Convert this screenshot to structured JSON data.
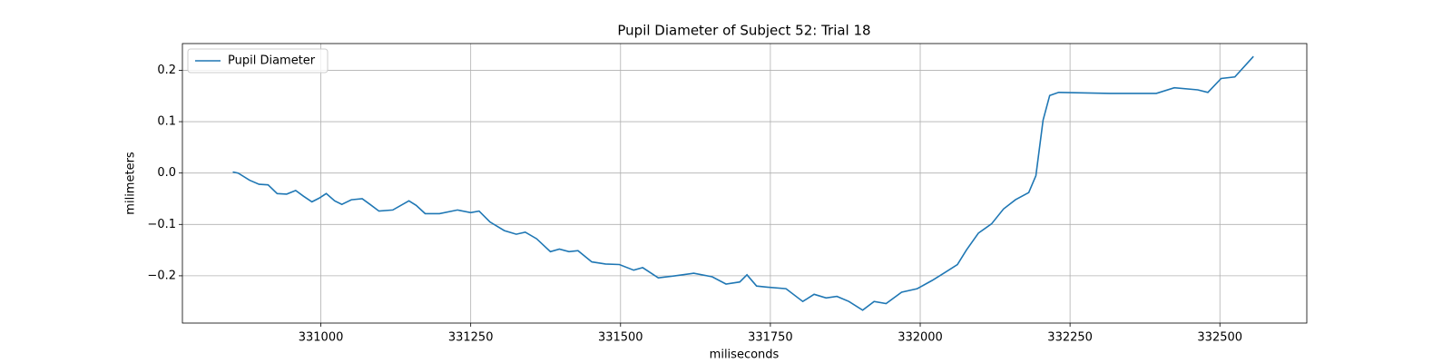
{
  "chart_data": {
    "type": "line",
    "title": "Pupil Diameter of Subject 52: Trial 18",
    "xlabel": "miliseconds",
    "ylabel": "milimeters",
    "x": [
      330853,
      330862,
      330881,
      330897,
      330912,
      330927,
      330943,
      330958,
      330971,
      330985,
      330997,
      331009,
      331023,
      331035,
      331051,
      331069,
      331082,
      331097,
      331120,
      331147,
      331159,
      331174,
      331198,
      331228,
      331250,
      331264,
      331282,
      331306,
      331326,
      331341,
      331360,
      331383,
      331398,
      331414,
      331429,
      331452,
      331475,
      331498,
      331522,
      331537,
      331563,
      331591,
      331622,
      331653,
      331676,
      331699,
      331711,
      331727,
      331745,
      331776,
      331804,
      331823,
      331843,
      331861,
      331881,
      331904,
      331923,
      331943,
      331969,
      331995,
      332020,
      332042,
      332062,
      332077,
      332097,
      332119,
      332139,
      332159,
      332181,
      332193,
      332205,
      332216,
      332231,
      332316,
      332394,
      332424,
      332463,
      332480,
      332502,
      332525,
      332556
    ],
    "series": [
      {
        "name": "Pupil Diameter",
        "color": "#1f77b4",
        "values": [
          0.002,
          0.0,
          -0.014,
          -0.022,
          -0.023,
          -0.04,
          -0.041,
          -0.034,
          -0.045,
          -0.056,
          -0.049,
          -0.04,
          -0.054,
          -0.061,
          -0.052,
          -0.05,
          -0.061,
          -0.074,
          -0.072,
          -0.054,
          -0.063,
          -0.079,
          -0.079,
          -0.072,
          -0.077,
          -0.074,
          -0.095,
          -0.112,
          -0.119,
          -0.115,
          -0.128,
          -0.153,
          -0.148,
          -0.153,
          -0.151,
          -0.173,
          -0.177,
          -0.178,
          -0.189,
          -0.184,
          -0.204,
          -0.2,
          -0.195,
          -0.202,
          -0.216,
          -0.212,
          -0.198,
          -0.22,
          -0.222,
          -0.225,
          -0.25,
          -0.236,
          -0.243,
          -0.24,
          -0.25,
          -0.267,
          -0.25,
          -0.254,
          -0.232,
          -0.225,
          -0.209,
          -0.193,
          -0.178,
          -0.15,
          -0.117,
          -0.099,
          -0.07,
          -0.052,
          -0.038,
          -0.005,
          0.103,
          0.151,
          0.157,
          0.155,
          0.155,
          0.166,
          0.162,
          0.157,
          0.184,
          0.187,
          0.227
        ]
      }
    ],
    "xlim": [
      330769,
      332645
    ],
    "ylim": [
      -0.292,
      0.252
    ],
    "xticks": [
      331000,
      331250,
      331500,
      331750,
      332000,
      332250,
      332500
    ],
    "yticks": [
      {
        "value": -0.2,
        "label": "−0.2"
      },
      {
        "value": -0.1,
        "label": "−0.1"
      },
      {
        "value": 0,
        "label": "0.0"
      },
      0.1,
      0.2
    ],
    "grid": true,
    "legend": "upper left"
  }
}
